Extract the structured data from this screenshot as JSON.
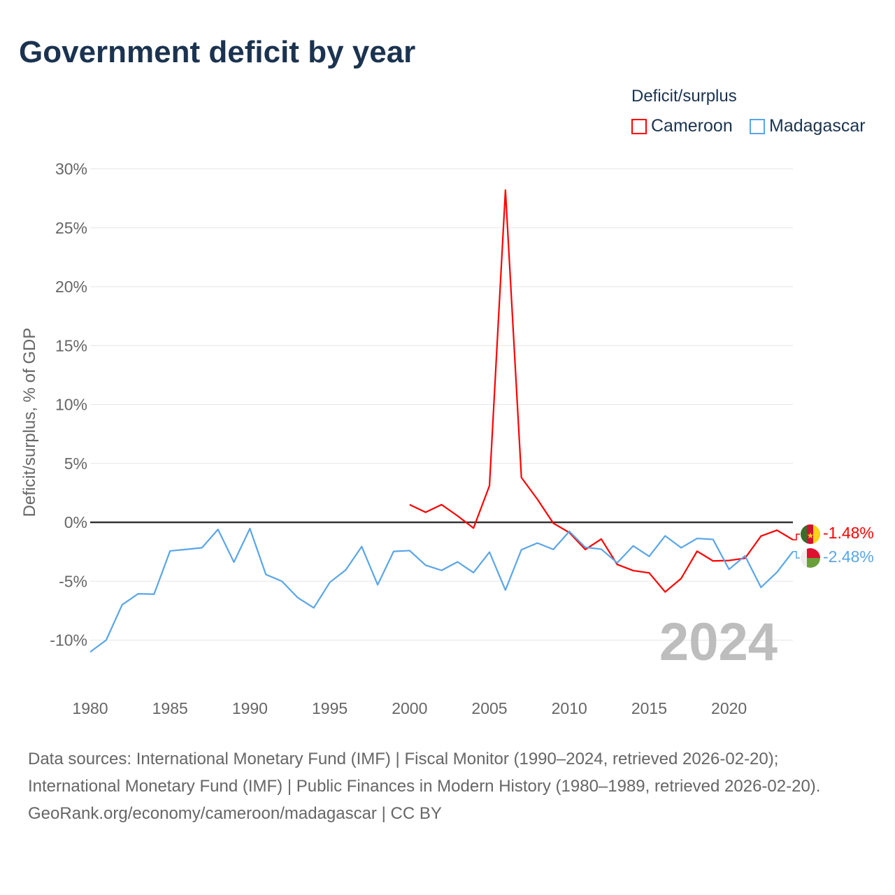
{
  "title": "Government deficit by year",
  "legend": {
    "title": "Deficit/surplus",
    "items": [
      {
        "label": "Cameroon",
        "color": "#ff0000"
      },
      {
        "label": "Madagascar",
        "color": "#5aa5e8"
      }
    ]
  },
  "watermark_year": "2024",
  "end_labels": {
    "cameroon": "-1.48%",
    "madagascar": "-2.48%"
  },
  "sources": {
    "line1": "Data sources: International Monetary Fund (IMF) | Fiscal Monitor (1990–2024, retrieved 2026-02-20); International Monetary Fund (IMF) | Public Finances in Modern History (1980–1989, retrieved 2026-02-20).",
    "line2": "GeoRank.org/economy/cameroon/madagascar | CC BY"
  },
  "chart_data": {
    "type": "line",
    "title": "Government deficit by year",
    "xlabel": "",
    "ylabel": "Deficit/surplus, % of GDP",
    "xlim": [
      1980,
      2024
    ],
    "ylim": [
      -12,
      30
    ],
    "yticks": [
      30,
      25,
      20,
      15,
      10,
      5,
      0,
      -5,
      -10
    ],
    "ytick_labels": [
      "30%",
      "25%",
      "20%",
      "15%",
      "10%",
      "5%",
      "0%",
      "-5%",
      "-10%"
    ],
    "xticks": [
      1980,
      1985,
      1990,
      1995,
      2000,
      2005,
      2010,
      2015,
      2020
    ],
    "xtick_labels": [
      "1980",
      "1985",
      "1990",
      "1995",
      "2000",
      "2005",
      "2010",
      "2015",
      "2020"
    ],
    "grid": true,
    "legend_position": "top-right",
    "series": [
      {
        "name": "Cameroon",
        "color": "#ff0000",
        "x": [
          2000,
          2001,
          2002,
          2003,
          2004,
          2005,
          2006,
          2007,
          2008,
          2009,
          2010,
          2011,
          2012,
          2013,
          2014,
          2015,
          2016,
          2017,
          2018,
          2019,
          2020,
          2021,
          2022,
          2023,
          2024
        ],
        "values": [
          1.5,
          0.85,
          1.5,
          0.55,
          -0.49,
          3.1,
          28.2,
          3.8,
          1.96,
          -0.08,
          -0.87,
          -2.31,
          -1.42,
          -3.58,
          -4.1,
          -4.29,
          -5.91,
          -4.77,
          -2.45,
          -3.28,
          -3.24,
          -3.05,
          -1.17,
          -0.67,
          -1.48
        ]
      },
      {
        "name": "Madagascar",
        "color": "#5aa5e8",
        "x": [
          1980,
          1981,
          1982,
          1983,
          1984,
          1985,
          1986,
          1987,
          1988,
          1989,
          1990,
          1991,
          1992,
          1993,
          1994,
          1995,
          1996,
          1997,
          1998,
          1999,
          2000,
          2001,
          2002,
          2003,
          2004,
          2005,
          2006,
          2007,
          2008,
          2009,
          2010,
          2011,
          2012,
          2013,
          2014,
          2015,
          2016,
          2017,
          2018,
          2019,
          2020,
          2021,
          2022,
          2023,
          2024
        ],
        "values": [
          -11.0,
          -10.0,
          -7.0,
          -6.07,
          -6.1,
          -2.43,
          -2.3,
          -2.16,
          -0.6,
          -3.38,
          -0.53,
          -4.43,
          -5.0,
          -6.4,
          -7.26,
          -5.1,
          -4.04,
          -2.06,
          -5.3,
          -2.47,
          -2.4,
          -3.64,
          -4.08,
          -3.36,
          -4.27,
          -2.53,
          -5.75,
          -2.33,
          -1.76,
          -2.3,
          -0.77,
          -2.12,
          -2.28,
          -3.44,
          -2.0,
          -2.89,
          -1.15,
          -2.16,
          -1.37,
          -1.45,
          -3.99,
          -2.85,
          -5.52,
          -4.24,
          -2.48
        ]
      }
    ]
  }
}
